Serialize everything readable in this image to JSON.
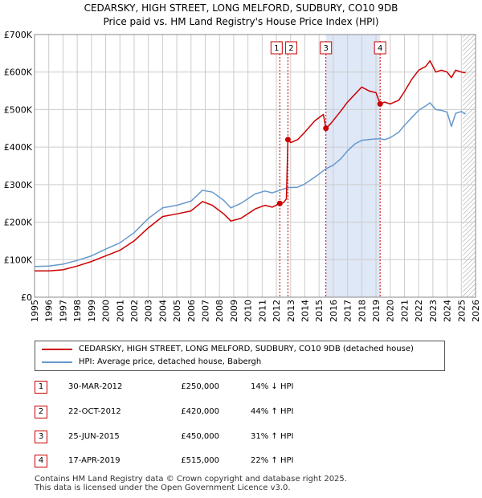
{
  "title_line1": "CEDARSKY, HIGH STREET, LONG MELFORD, SUDBURY, CO10 9DB",
  "title_line2": "Price paid vs. HM Land Registry's House Price Index (HPI)",
  "colors": {
    "property": "#cc0000",
    "hpi": "#6699cc",
    "shade": "#dfe8f7",
    "grid": "#cccccc",
    "marker_border": "#cc0000"
  },
  "chart_data": {
    "type": "line",
    "title": "Price paid vs. HM Land Registry's House Price Index (HPI)",
    "xlabel": "",
    "ylabel": "",
    "xlim": [
      1995,
      2026
    ],
    "ylim": [
      0,
      700000
    ],
    "y_ticks": [
      {
        "value": 0,
        "label": "£0"
      },
      {
        "value": 100000,
        "label": "£100K"
      },
      {
        "value": 200000,
        "label": "£200K"
      },
      {
        "value": 300000,
        "label": "£300K"
      },
      {
        "value": 400000,
        "label": "£400K"
      },
      {
        "value": 500000,
        "label": "£500K"
      },
      {
        "value": 600000,
        "label": "£600K"
      },
      {
        "value": 700000,
        "label": "£700K"
      }
    ],
    "x_ticks": [
      "1995",
      "1996",
      "1997",
      "1998",
      "1999",
      "2000",
      "2001",
      "2002",
      "2003",
      "2004",
      "2005",
      "2006",
      "2007",
      "2008",
      "2009",
      "2010",
      "2011",
      "2012",
      "2013",
      "2014",
      "2015",
      "2016",
      "2017",
      "2018",
      "2019",
      "2020",
      "2021",
      "2022",
      "2023",
      "2024",
      "2025",
      "2026"
    ],
    "shaded_range": [
      2015.48,
      2019.29
    ],
    "hatched_from": 2025.1,
    "series": [
      {
        "name": "CEDARSKY, HIGH STREET, LONG MELFORD, SUDBURY, CO10 9DB (detached house)",
        "color": "#cc0000",
        "points": [
          [
            1995,
            70000
          ],
          [
            1996,
            70000
          ],
          [
            1997,
            73000
          ],
          [
            1998,
            83000
          ],
          [
            1999,
            95000
          ],
          [
            2000,
            110000
          ],
          [
            2001,
            125000
          ],
          [
            2002,
            150000
          ],
          [
            2003,
            185000
          ],
          [
            2004,
            215000
          ],
          [
            2005,
            222000
          ],
          [
            2006,
            230000
          ],
          [
            2006.8,
            255000
          ],
          [
            2007.5,
            245000
          ],
          [
            2008.3,
            222000
          ],
          [
            2008.8,
            203000
          ],
          [
            2009.5,
            210000
          ],
          [
            2010.5,
            235000
          ],
          [
            2011.2,
            245000
          ],
          [
            2011.7,
            240000
          ],
          [
            2012.24,
            250000
          ],
          [
            2012.5,
            252000
          ],
          [
            2012.7,
            262000
          ],
          [
            2012.81,
            420000
          ],
          [
            2013,
            412000
          ],
          [
            2013.5,
            420000
          ],
          [
            2014,
            440000
          ],
          [
            2014.7,
            470000
          ],
          [
            2015.3,
            487000
          ],
          [
            2015.48,
            450000
          ],
          [
            2015.8,
            462000
          ],
          [
            2016.5,
            495000
          ],
          [
            2017,
            520000
          ],
          [
            2017.5,
            540000
          ],
          [
            2018,
            560000
          ],
          [
            2018.5,
            550000
          ],
          [
            2019,
            545000
          ],
          [
            2019.29,
            515000
          ],
          [
            2019.6,
            520000
          ],
          [
            2020,
            515000
          ],
          [
            2020.6,
            525000
          ],
          [
            2021,
            548000
          ],
          [
            2021.5,
            580000
          ],
          [
            2022,
            605000
          ],
          [
            2022.5,
            615000
          ],
          [
            2022.8,
            630000
          ],
          [
            2023.2,
            600000
          ],
          [
            2023.6,
            605000
          ],
          [
            2024,
            600000
          ],
          [
            2024.3,
            585000
          ],
          [
            2024.6,
            605000
          ],
          [
            2025,
            600000
          ],
          [
            2025.3,
            598000
          ]
        ]
      },
      {
        "name": "HPI: Average price, detached house, Babergh",
        "color": "#6699cc",
        "points": [
          [
            1995,
            82000
          ],
          [
            1996,
            83000
          ],
          [
            1997,
            88000
          ],
          [
            1998,
            98000
          ],
          [
            1999,
            110000
          ],
          [
            2000,
            128000
          ],
          [
            2001,
            145000
          ],
          [
            2002,
            172000
          ],
          [
            2003,
            210000
          ],
          [
            2004,
            238000
          ],
          [
            2005,
            245000
          ],
          [
            2006,
            256000
          ],
          [
            2006.8,
            285000
          ],
          [
            2007.5,
            280000
          ],
          [
            2008.3,
            258000
          ],
          [
            2008.8,
            238000
          ],
          [
            2009.5,
            250000
          ],
          [
            2010.5,
            275000
          ],
          [
            2011.2,
            283000
          ],
          [
            2011.7,
            278000
          ],
          [
            2012.24,
            285000
          ],
          [
            2012.81,
            292000
          ],
          [
            2013.5,
            293000
          ],
          [
            2014,
            302000
          ],
          [
            2014.7,
            320000
          ],
          [
            2015.48,
            342000
          ],
          [
            2016,
            352000
          ],
          [
            2016.5,
            368000
          ],
          [
            2017,
            390000
          ],
          [
            2017.5,
            408000
          ],
          [
            2018,
            418000
          ],
          [
            2018.5,
            420000
          ],
          [
            2019,
            422000
          ],
          [
            2019.29,
            422000
          ],
          [
            2019.6,
            420000
          ],
          [
            2020,
            425000
          ],
          [
            2020.6,
            440000
          ],
          [
            2021,
            458000
          ],
          [
            2021.5,
            478000
          ],
          [
            2022,
            498000
          ],
          [
            2022.5,
            510000
          ],
          [
            2022.8,
            518000
          ],
          [
            2023.2,
            500000
          ],
          [
            2023.6,
            498000
          ],
          [
            2024,
            493000
          ],
          [
            2024.3,
            455000
          ],
          [
            2024.6,
            490000
          ],
          [
            2025,
            495000
          ],
          [
            2025.3,
            488000
          ]
        ]
      }
    ],
    "sales": [
      {
        "n": "1",
        "x": 2012.24,
        "price": 250000
      },
      {
        "n": "2",
        "x": 2012.81,
        "price": 420000
      },
      {
        "n": "3",
        "x": 2015.48,
        "price": 450000
      },
      {
        "n": "4",
        "x": 2019.29,
        "price": 515000
      }
    ]
  },
  "legend": {
    "property_label": "CEDARSKY, HIGH STREET, LONG MELFORD, SUDBURY, CO10 9DB (detached house)",
    "hpi_label": "HPI: Average price, detached house, Babergh"
  },
  "table": [
    {
      "n": "1",
      "date": "30-MAR-2012",
      "price": "£250,000",
      "hpi": "14% ↓ HPI"
    },
    {
      "n": "2",
      "date": "22-OCT-2012",
      "price": "£420,000",
      "hpi": "44% ↑ HPI"
    },
    {
      "n": "3",
      "date": "25-JUN-2015",
      "price": "£450,000",
      "hpi": "31% ↑ HPI"
    },
    {
      "n": "4",
      "date": "17-APR-2019",
      "price": "£515,000",
      "hpi": "22% ↑ HPI"
    }
  ],
  "footer_line1": "Contains HM Land Registry data © Crown copyright and database right 2025.",
  "footer_line2": "This data is licensed under the Open Government Licence v3.0."
}
